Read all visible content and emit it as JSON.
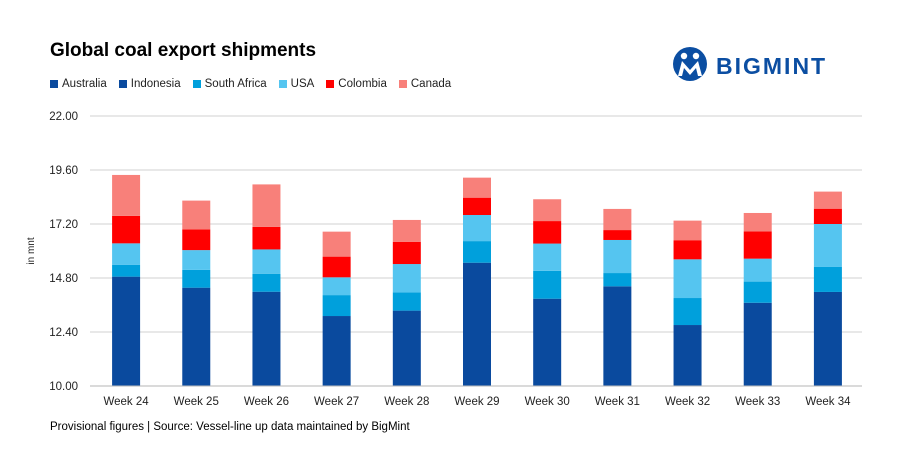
{
  "chart_data": {
    "type": "bar",
    "stacked": true,
    "title": "Global coal export shipments",
    "ylabel": "in mnt",
    "xlabel": "",
    "ylim": [
      10,
      22
    ],
    "yticks": [
      "10.00",
      "12.40",
      "14.80",
      "17.20",
      "19.60",
      "22.00"
    ],
    "grid": true,
    "legend_position": "top-left",
    "categories": [
      "Week 24",
      "Week 25",
      "Week 26",
      "Week 27",
      "Week 28",
      "Week 29",
      "Week 30",
      "Week 31",
      "Week 32",
      "Week 33",
      "Week 34"
    ],
    "series": [
      {
        "name": "Australia",
        "color": "#0a4a9e",
        "values": [
          14.86,
          14.37,
          14.19,
          13.11,
          13.35,
          15.48,
          13.88,
          14.43,
          12.71,
          13.7,
          14.18
        ]
      },
      {
        "name": "Indonesia",
        "color": "#0a4a9e",
        "values": [
          null,
          null,
          null,
          null,
          null,
          null,
          null,
          null,
          null,
          null,
          null
        ]
      },
      {
        "name": "South Africa",
        "color": "#00a0dc",
        "values": [
          0.52,
          0.79,
          0.8,
          0.93,
          0.81,
          0.96,
          1.24,
          0.59,
          1.2,
          0.94,
          1.11
        ]
      },
      {
        "name": "USA",
        "color": "#55c5f0",
        "values": [
          0.96,
          0.88,
          1.08,
          0.79,
          1.26,
          1.16,
          1.21,
          1.47,
          1.72,
          1.02,
          1.91
        ]
      },
      {
        "name": "Colombia",
        "color": "#ff0000",
        "values": [
          1.22,
          0.92,
          1.0,
          0.92,
          0.99,
          0.77,
          1.0,
          0.44,
          0.85,
          1.21,
          0.68
        ]
      },
      {
        "name": "Canada",
        "color": "#f8807a",
        "values": [
          1.82,
          1.28,
          1.89,
          1.11,
          0.97,
          0.89,
          0.97,
          0.94,
          0.87,
          0.82,
          0.76
        ]
      }
    ]
  },
  "logo": {
    "text": "BIGMINT",
    "color": "#0b4ea2"
  },
  "footer": "Provisional figures | Source: Vessel-line up data maintained by BigMint"
}
